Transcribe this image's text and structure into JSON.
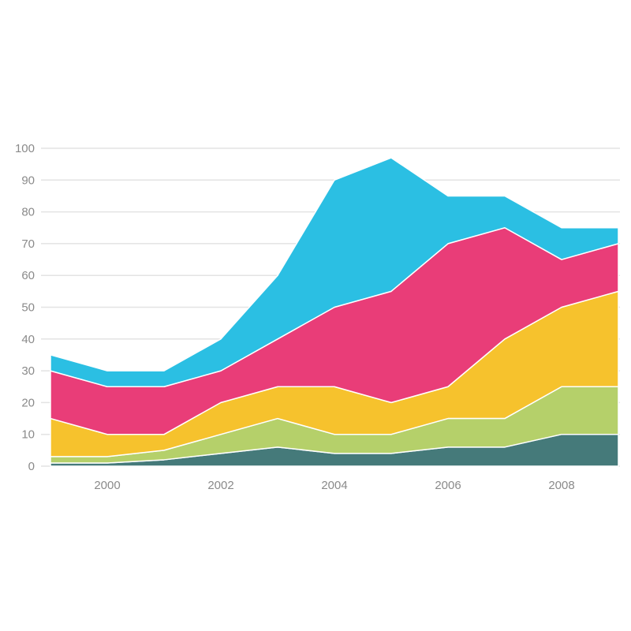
{
  "chart_data": {
    "type": "area",
    "stacked": true,
    "title": "",
    "xlabel": "",
    "ylabel": "",
    "x": [
      1999,
      2000,
      2001,
      2002,
      2003,
      2004,
      2005,
      2006,
      2007,
      2008,
      2009
    ],
    "ylim": [
      0,
      100
    ],
    "xlim": [
      1999,
      2009
    ],
    "y_ticks": [
      "0",
      "10",
      "20",
      "30",
      "40",
      "50",
      "60",
      "70",
      "80",
      "90",
      "100"
    ],
    "x_ticks": [
      "2000",
      "2002",
      "2004",
      "2006",
      "2008"
    ],
    "grid": true,
    "legend": "none",
    "series": [
      {
        "color": "#457a7a",
        "values": [
          1,
          1,
          2,
          4,
          6,
          4,
          4,
          6,
          6,
          10,
          10
        ]
      },
      {
        "color": "#b5d06a",
        "values": [
          2,
          2,
          3,
          6,
          9,
          6,
          6,
          9,
          9,
          15,
          15
        ]
      },
      {
        "color": "#f6c22d",
        "values": [
          12,
          7,
          5,
          10,
          10,
          15,
          10,
          10,
          25,
          25,
          30
        ]
      },
      {
        "color": "#e93d78",
        "values": [
          15,
          15,
          15,
          10,
          15,
          25,
          35,
          45,
          35,
          15,
          15
        ]
      },
      {
        "color": "#2bbfe3",
        "values": [
          5,
          5,
          5,
          10,
          20,
          40,
          42,
          15,
          10,
          10,
          5
        ]
      }
    ]
  }
}
